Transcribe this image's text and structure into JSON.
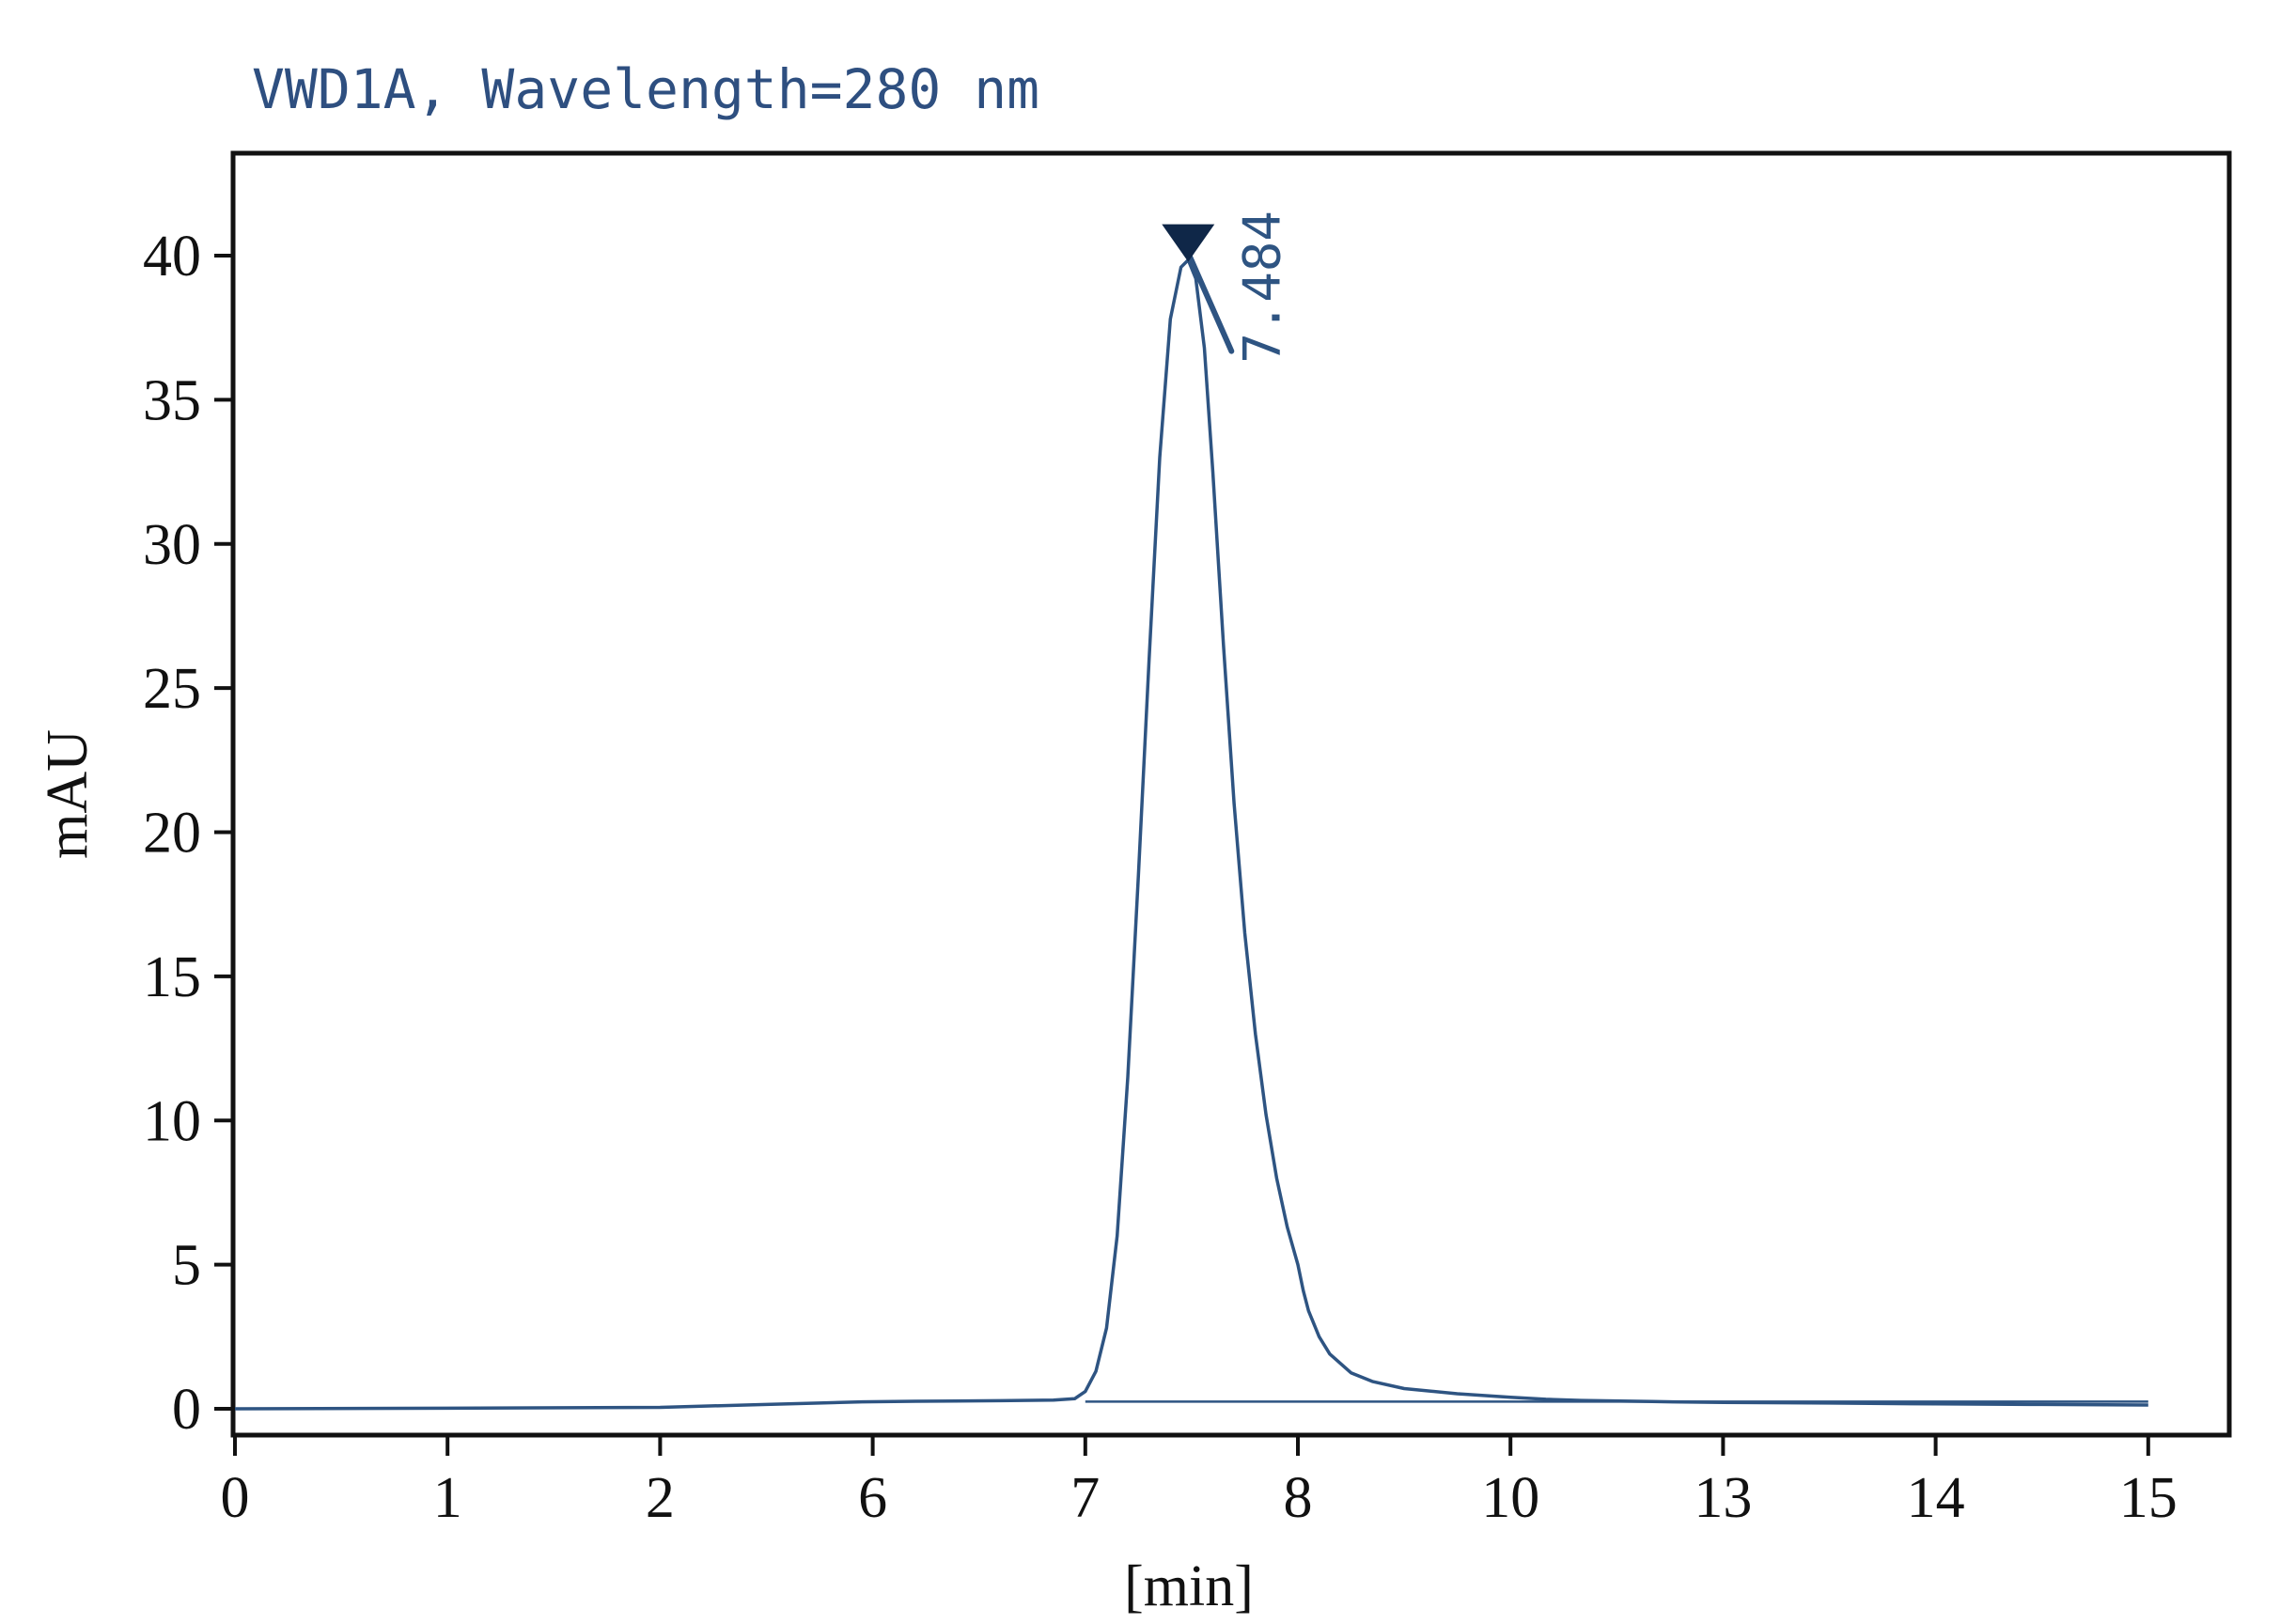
{
  "chart_data": {
    "type": "line",
    "title": "VWD1A, Wavelength=280 nm",
    "xlabel": "[min]",
    "ylabel": "mAU",
    "x_tick_labels": [
      "0",
      "1",
      "2",
      "6",
      "7",
      "8",
      "10",
      "13",
      "14",
      "15"
    ],
    "y_ticks": [
      0,
      5,
      10,
      15,
      20,
      25,
      30,
      35,
      40
    ],
    "y_tick_labels": [
      "0",
      "5",
      "10",
      "15",
      "20",
      "25",
      "30",
      "35",
      "40"
    ],
    "ylim": [
      -0.5,
      43.2
    ],
    "grid": false,
    "legend": "none",
    "series": [
      {
        "x": [
          0,
          1,
          2,
          3,
          4,
          5,
          5.8,
          6.2,
          6.6,
          6.85,
          6.95,
          7.0,
          7.05,
          7.1,
          7.15,
          7.2,
          7.25,
          7.3,
          7.35,
          7.4,
          7.45,
          7.484,
          7.52,
          7.56,
          7.6,
          7.65,
          7.7,
          7.75,
          7.8,
          7.85,
          7.9,
          7.95,
          8.0,
          8.05,
          8.1,
          8.2,
          8.3,
          8.5,
          8.7,
          9.0,
          9.5,
          10.0,
          10.5,
          11.0,
          12.0,
          13.0,
          13.5,
          14.0,
          14.5,
          15.0
        ],
        "y": [
          0.0,
          0.02,
          0.05,
          0.1,
          0.15,
          0.2,
          0.24,
          0.26,
          0.28,
          0.3,
          0.35,
          0.6,
          1.3,
          2.8,
          6.0,
          11.5,
          18.5,
          26.0,
          33.0,
          37.8,
          39.6,
          39.85,
          39.2,
          36.8,
          32.5,
          26.5,
          21.0,
          16.5,
          13.0,
          10.2,
          8.0,
          6.3,
          5.0,
          4.1,
          3.4,
          2.5,
          1.9,
          1.25,
          0.95,
          0.7,
          0.52,
          0.4,
          0.33,
          0.29,
          0.25,
          0.22,
          0.2,
          0.17,
          0.15,
          0.13
        ]
      }
    ],
    "baseline": {
      "x": [
        7.0,
        15.0
      ],
      "y": [
        0.25,
        0.25
      ]
    },
    "annotations": [
      {
        "text": "7.484",
        "x": 7.484,
        "y": 39.85,
        "marker": "triangle-down"
      }
    ],
    "colors": {
      "trace": "#2e5482",
      "title": "#2e4f80",
      "marker": "#0f2748",
      "frame": "#111111"
    }
  }
}
